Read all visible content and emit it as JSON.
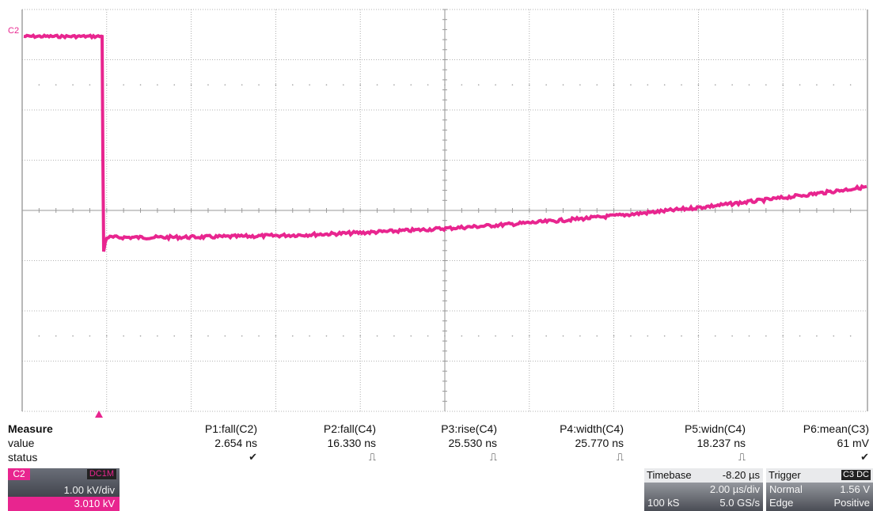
{
  "channel_label": "C2",
  "colors": {
    "trace": "#e8258f",
    "grid": "#9a9a9a"
  },
  "measure": {
    "header": "Measure",
    "row_value": "value",
    "row_status": "status",
    "columns": [
      {
        "name": "P1:fall(C2)",
        "value": "2.654 ns",
        "status": "✔"
      },
      {
        "name": "P2:fall(C4)",
        "value": "16.330 ns",
        "status": "⎍"
      },
      {
        "name": "P3:rise(C4)",
        "value": "25.530 ns",
        "status": "⎍"
      },
      {
        "name": "P4:width(C4)",
        "value": "25.770 ns",
        "status": "⎍"
      },
      {
        "name": "P5:widn(C4)",
        "value": "18.237 ns",
        "status": "⎍"
      },
      {
        "name": "P6:mean(C3)",
        "value": "61 mV",
        "status": "✔"
      }
    ]
  },
  "channel_box": {
    "tag": "C2",
    "coupling": "DC1M",
    "scale": "1.00 kV/div",
    "offset": "3.010 kV"
  },
  "timebase": {
    "title": "Timebase",
    "delay": "-8.20 µs",
    "per_div": "2.00 µs/div",
    "samples": "100 kS",
    "rate": "5.0 GS/s"
  },
  "trigger": {
    "title": "Trigger",
    "badge": "C3 DC",
    "mode": "Normal",
    "level": "1.56 V",
    "type": "Edge",
    "slope": "Positive"
  }
}
